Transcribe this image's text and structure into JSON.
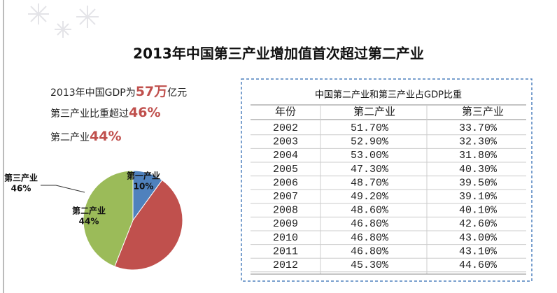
{
  "title": "2013年中国第三产业增加值首次超过第二产业",
  "facts": [
    {
      "before": "2013年中国GDP为",
      "highlight": "57万",
      "after": "亿元"
    },
    {
      "before": "第三产业比重超过",
      "highlight": "46%"
    },
    {
      "before": "第二产业",
      "highlight": "44%"
    }
  ],
  "chart_data": {
    "type": "pie",
    "categories": [
      "第一产业",
      "第三产业",
      "第二产业"
    ],
    "values": [
      10,
      46,
      44
    ],
    "value_labels": [
      "10%",
      "46%",
      "44%"
    ],
    "colors": [
      "#4f81bd",
      "#c0504d",
      "#9bbb59"
    ]
  },
  "table": {
    "title": "中国第二产业和第三产业占GDP比重",
    "header": [
      "年份",
      "第二产业",
      "第三产业"
    ],
    "rows": [
      [
        "2002",
        "51.70%",
        "33.70%"
      ],
      [
        "2003",
        "52.90%",
        "32.30%"
      ],
      [
        "2004",
        "53.00%",
        "31.80%"
      ],
      [
        "2005",
        "47.30%",
        "40.30%"
      ],
      [
        "2006",
        "48.70%",
        "39.50%"
      ],
      [
        "2007",
        "49.20%",
        "39.10%"
      ],
      [
        "2008",
        "48.60%",
        "40.10%"
      ],
      [
        "2009",
        "46.80%",
        "42.60%"
      ],
      [
        "2010",
        "46.80%",
        "43.00%"
      ],
      [
        "2011",
        "46.80%",
        "43.10%"
      ],
      [
        "2012",
        "45.30%",
        "44.60%"
      ]
    ]
  }
}
